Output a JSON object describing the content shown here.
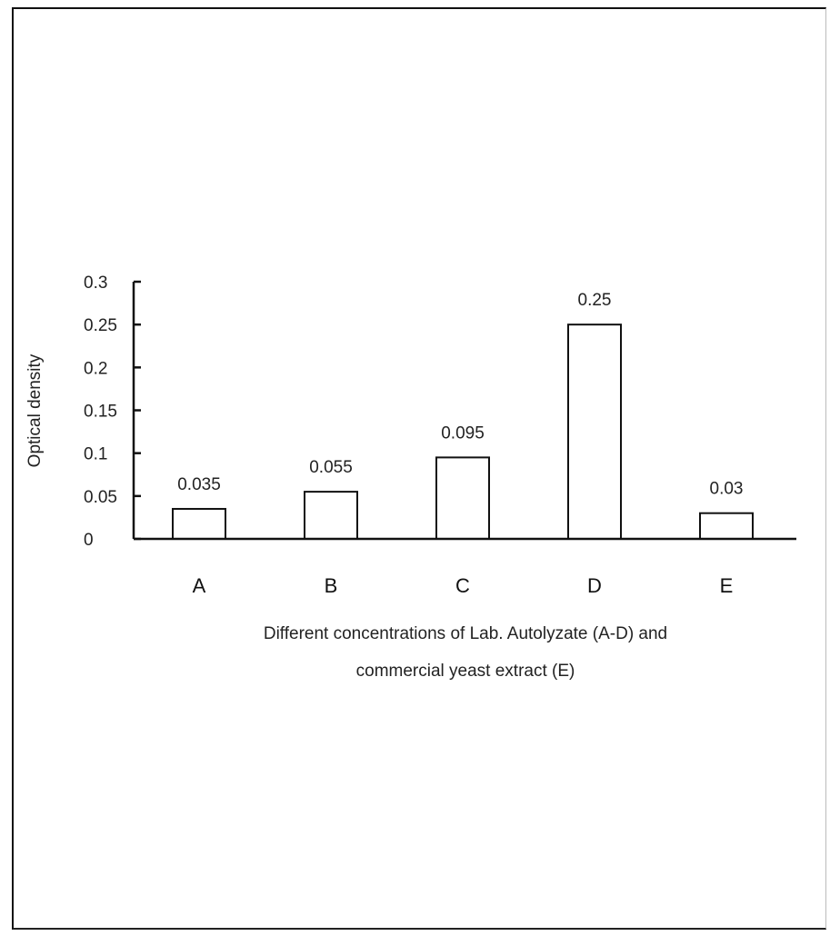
{
  "chart_data": {
    "type": "bar",
    "categories": [
      "A",
      "B",
      "C",
      "D",
      "E"
    ],
    "values": [
      0.035,
      0.055,
      0.095,
      0.25,
      0.03
    ],
    "data_labels": [
      "0.035",
      "0.055",
      "0.095",
      "0.25",
      "0.03"
    ],
    "ylabel": "Optical density",
    "xlabel_lines": [
      "Different concentrations of Lab. Autolyzate (A-D) and",
      "commercial yeast extract (E)"
    ],
    "ylim": [
      0,
      0.3
    ],
    "yticks": [
      0,
      0.05,
      0.1,
      0.15,
      0.2,
      0.25,
      0.3
    ],
    "ytick_labels": [
      "0",
      "0.05",
      "0.1",
      "0.15",
      "0.2",
      "0.25",
      "0.3"
    ],
    "grid": false,
    "legend": "none",
    "bar_fill": "#ffffff",
    "bar_stroke": "#111111"
  }
}
